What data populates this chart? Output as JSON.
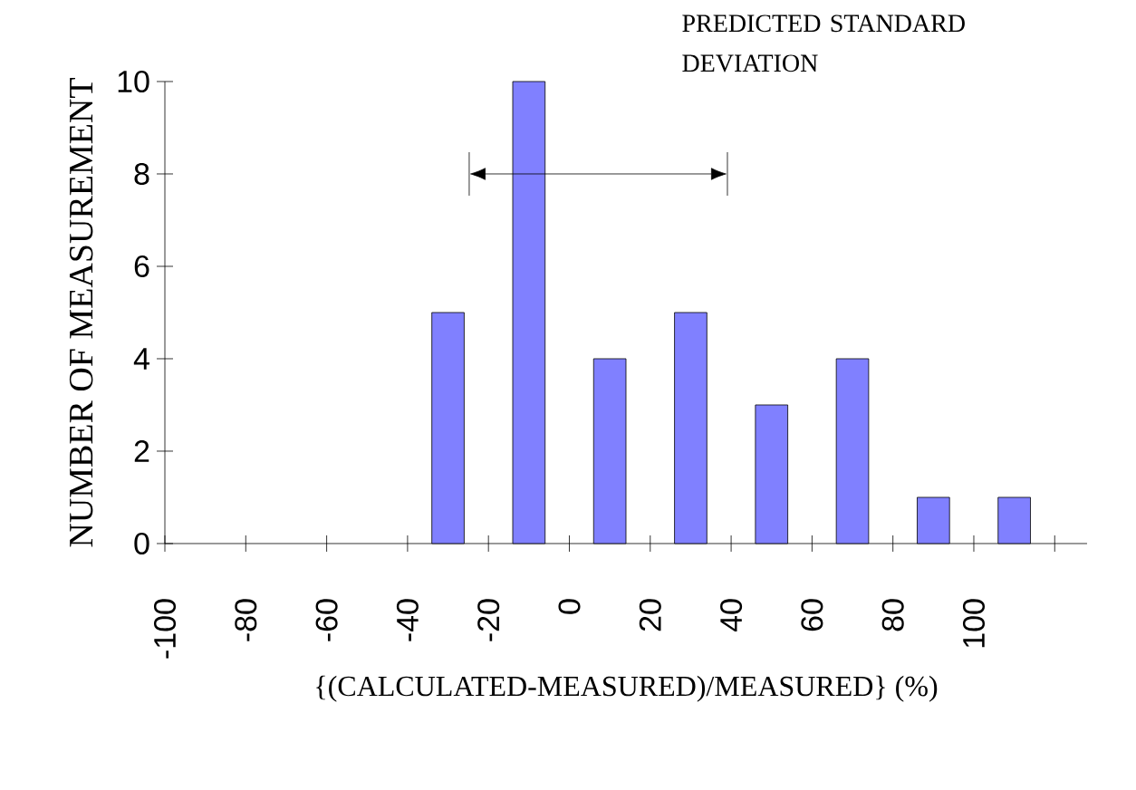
{
  "chart_data": {
    "type": "histogram",
    "xlabel": "{(CALCULATED-MEASURED)/MEASURED}  (%)",
    "ylabel": "NUMBER OF MEASUREMENT",
    "bins": [
      -40,
      -20,
      0,
      20,
      40,
      60,
      80,
      100,
      120
    ],
    "values": [
      5,
      10,
      4,
      5,
      3,
      4,
      1,
      1
    ],
    "color": "#8080ff",
    "xlim": [
      -100,
      128
    ],
    "ylim": [
      0,
      10
    ],
    "xticks": [
      -100,
      -80,
      -60,
      -40,
      -20,
      0,
      20,
      40,
      60,
      80,
      100,
      {
        "value": 120,
        "label": null
      }
    ],
    "yticks": [
      0,
      2,
      4,
      6,
      8,
      10
    ],
    "annotations": [
      "PREDICTED STANDARD DEVIATION"
    ],
    "grid": false
  }
}
